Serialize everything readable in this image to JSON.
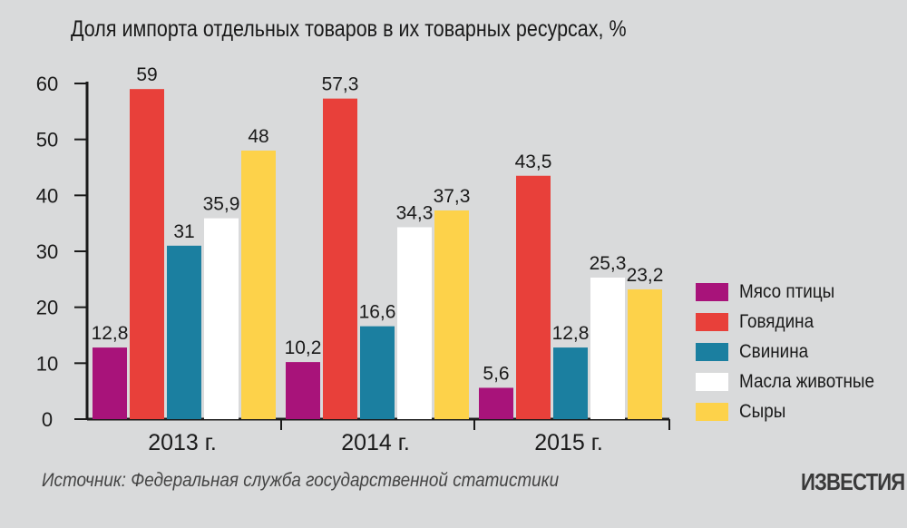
{
  "chart_data": {
    "type": "bar",
    "title": "Доля импорта отдельных товаров в их товарных ресурсах, %",
    "categories": [
      "2013 г.",
      "2014 г.",
      "2015 г."
    ],
    "series": [
      {
        "name": "Мясо птицы",
        "color": "#a8137a",
        "values": [
          12.8,
          10.2,
          5.6
        ],
        "labels": [
          "12,8",
          "10,2",
          "5,6"
        ]
      },
      {
        "name": "Говядина",
        "color": "#e8403a",
        "values": [
          59,
          57.3,
          43.5
        ],
        "labels": [
          "59",
          "57,3",
          "43,5"
        ]
      },
      {
        "name": "Свинина",
        "color": "#1b7fa0",
        "values": [
          31,
          16.6,
          12.8
        ],
        "labels": [
          "31",
          "16,6",
          "12,8"
        ]
      },
      {
        "name": "Масла животные",
        "color": "#ffffff",
        "values": [
          35.9,
          34.3,
          25.3
        ],
        "labels": [
          "35,9",
          "34,3",
          "25,3"
        ]
      },
      {
        "name": "Сыры",
        "color": "#fdd24a",
        "values": [
          48,
          37.3,
          23.2
        ],
        "labels": [
          "48",
          "37,3",
          "23,2"
        ]
      }
    ],
    "ylim": [
      0,
      60
    ],
    "yticks": [
      "0",
      "10",
      "20",
      "30",
      "40",
      "50",
      "60"
    ],
    "legend_position": "right"
  },
  "source": "Источник: Федеральная служба государственной статистики",
  "brand": "ИЗВЕСТИЯ"
}
